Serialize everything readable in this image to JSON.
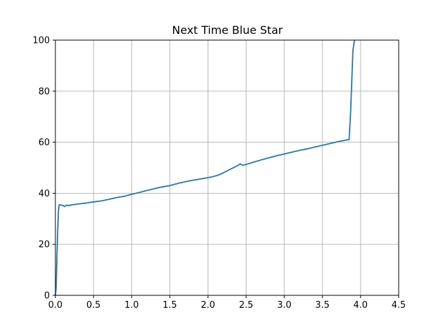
{
  "chart_data": {
    "type": "line",
    "title": "Next Time Blue Star",
    "xlabel": "",
    "ylabel": "",
    "xlim": [
      0.0,
      4.5
    ],
    "ylim": [
      0,
      100
    ],
    "x_ticks": [
      "0.0",
      "0.5",
      "1.0",
      "1.5",
      "2.0",
      "2.5",
      "3.0",
      "3.5",
      "4.0",
      "4.5"
    ],
    "y_ticks": [
      "0",
      "20",
      "40",
      "60",
      "80",
      "100"
    ],
    "grid": true,
    "line_color": "#1f77b4",
    "series": [
      {
        "x": [
          0.0,
          0.01,
          0.02,
          0.03,
          0.04,
          0.05,
          0.07,
          0.1,
          0.12,
          0.15,
          0.17,
          0.2,
          0.25,
          0.3,
          0.35,
          0.4,
          0.45,
          0.5,
          0.6,
          0.7,
          0.8,
          0.9,
          1.0,
          1.1,
          1.2,
          1.3,
          1.4,
          1.5,
          1.6,
          1.7,
          1.8,
          1.9,
          2.0,
          2.05,
          2.1,
          2.15,
          2.2,
          2.3,
          2.4,
          2.42,
          2.44,
          2.46,
          2.5,
          2.6,
          2.7,
          2.8,
          2.9,
          3.0,
          3.1,
          3.2,
          3.3,
          3.4,
          3.5,
          3.6,
          3.7,
          3.8,
          3.85,
          3.87,
          3.89,
          3.9,
          3.92
        ],
        "y": [
          0,
          3,
          15,
          25,
          33,
          35.5,
          35.4,
          35.2,
          34.8,
          35.4,
          35.1,
          35.4,
          35.6,
          35.8,
          36.0,
          36.1,
          36.4,
          36.6,
          37.0,
          37.6,
          38.3,
          38.8,
          39.6,
          40.3,
          41.1,
          41.8,
          42.5,
          43.0,
          43.8,
          44.5,
          45.1,
          45.6,
          46.1,
          46.4,
          46.8,
          47.3,
          48.0,
          49.5,
          51.0,
          51.5,
          51.2,
          51.0,
          51.3,
          52.2,
          53.1,
          53.9,
          54.7,
          55.4,
          56.1,
          56.8,
          57.4,
          58.1,
          58.8,
          59.5,
          60.2,
          60.8,
          61.0,
          72,
          88,
          96,
          100
        ]
      }
    ]
  }
}
